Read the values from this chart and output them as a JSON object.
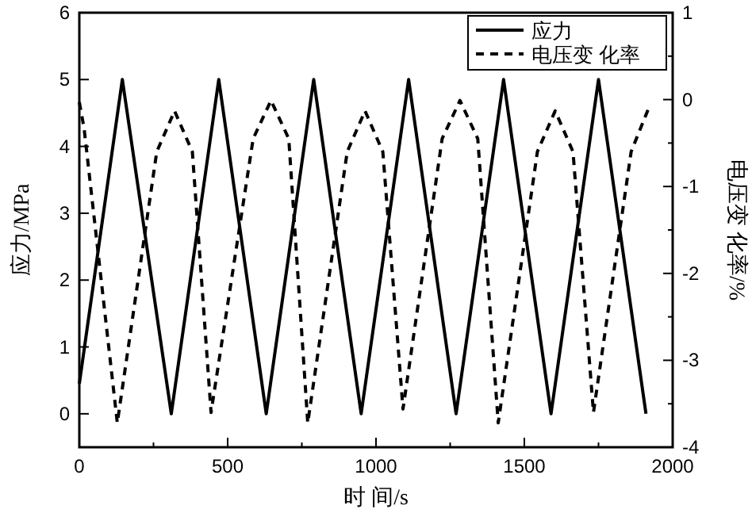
{
  "chart_data": {
    "type": "line",
    "xlabel": "时 间/s",
    "ylabel": "应力/MPa",
    "y2label": "电压变 化率/%",
    "xlim": [
      0,
      2000
    ],
    "xticks": [
      0,
      {
        "value": 250,
        "label": null
      },
      500,
      {
        "value": 750,
        "label": null
      },
      1000,
      {
        "value": 1250,
        "label": null
      },
      1500,
      {
        "value": 1750,
        "label": null
      },
      2000
    ],
    "ylim": [
      -0.5,
      6
    ],
    "yticks": [
      0,
      1,
      2,
      3,
      4,
      5,
      6
    ],
    "y2lim": [
      -4,
      1
    ],
    "y2ticks": [
      -4,
      {
        "value": -3.5,
        "label": null
      },
      -3,
      {
        "value": -2.5,
        "label": null
      },
      -2,
      {
        "value": -1.5,
        "label": null
      },
      -1,
      {
        "value": -0.5,
        "label": null
      },
      0,
      {
        "value": 0.5,
        "label": null
      },
      1
    ],
    "legend": "top right",
    "series": [
      {
        "name": "应力",
        "color": "#000000",
        "line_style": "solid",
        "x": [
          0,
          145,
          310,
          470,
          630,
          790,
          950,
          1110,
          1270,
          1430,
          1590,
          1750,
          1910
        ],
        "values": [
          0.45,
          5,
          0,
          5,
          0,
          5,
          0,
          5,
          0,
          5,
          0,
          5,
          0
        ]
      },
      {
        "name": "电压变 化率",
        "color": "#000000",
        "line_style": "dashed",
        "axis": "y2",
        "x": [
          0,
          16,
          128,
          261,
          321,
          381,
          444,
          586,
          646,
          706,
          770,
          903,
          963,
          1023,
          1091,
          1223,
          1283,
          1343,
          1412,
          1544,
          1604,
          1664,
          1733,
          1860,
          1920
        ],
        "values": [
          -0.03,
          -0.33,
          -3.72,
          -0.6,
          -0.13,
          -0.6,
          -3.6,
          -0.45,
          -0.01,
          -0.45,
          -3.72,
          -0.6,
          -0.13,
          -0.6,
          -3.56,
          -0.45,
          -0.01,
          -0.45,
          -3.72,
          -0.6,
          -0.13,
          -0.6,
          -3.6,
          -0.6,
          -0.09
        ]
      }
    ]
  }
}
